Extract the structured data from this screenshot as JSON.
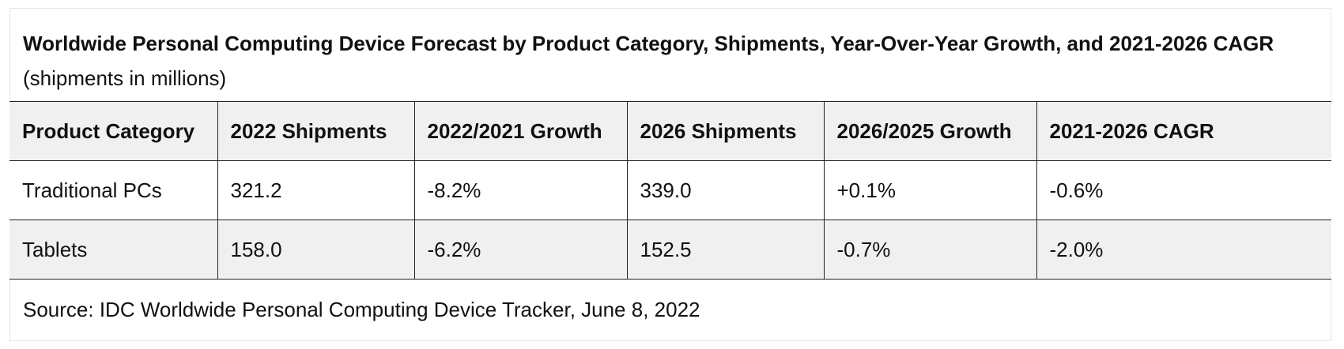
{
  "title": {
    "bold_text": "Worldwide Personal Computing Device Forecast by Product Category, Shipments, Year-Over-Year Growth, and 2021-2026 CAGR",
    "normal_text": " (shipments in millions)"
  },
  "table": {
    "columns": [
      "Product Category",
      "2022 Shipments",
      "2022/2021 Growth",
      "2026 Shipments",
      "2026/2025 Growth",
      "2021-2026 CAGR"
    ],
    "rows": [
      [
        "Traditional PCs",
        "321.2",
        "-8.2%",
        "339.0",
        "+0.1%",
        "-0.6%"
      ],
      [
        "Tablets",
        "158.0",
        "-6.2%",
        "152.5",
        "-0.7%",
        "-2.0%"
      ]
    ]
  },
  "source": "Source: IDC Worldwide Personal Computing Device Tracker, June 8, 2022",
  "colors": {
    "header_bg": "#f0f0f0",
    "border": "#222222",
    "text": "#111111"
  }
}
